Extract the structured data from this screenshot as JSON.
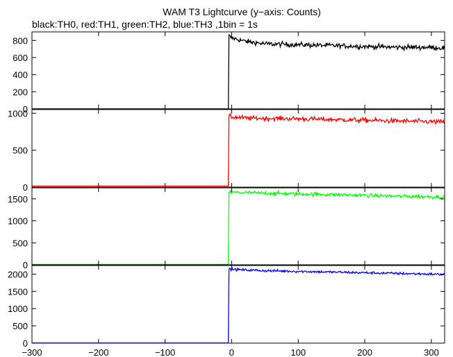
{
  "title": "WAM T3 Lightcurve (y−axis: Counts)",
  "subtitle": "black:TH0, red:TH1, green:TH2, blue:TH3 ,1bin = 1s",
  "chart_data": {
    "type": "line",
    "title": "WAM T3 Lightcurve (y−axis: Counts)",
    "subtitle": "black:TH0, red:TH1, green:TH2, blue:TH3 ,1bin = 1s",
    "xlim": [
      -300,
      320
    ],
    "x_ticks": [
      -300,
      -200,
      -100,
      0,
      100,
      200,
      300
    ],
    "x_tick_labels": [
      "−300",
      "−200",
      "−100",
      "0",
      "100",
      "200",
      "300"
    ],
    "bin_seconds": 1,
    "panels": [
      {
        "name": "TH0",
        "color": "#000000",
        "ylim": [
          0,
          900
        ],
        "y_ticks": [
          0,
          200,
          400,
          600,
          800
        ],
        "baseline": 0,
        "onset_x": -4,
        "profile_x": [
          -4,
          0,
          20,
          50,
          100,
          150,
          200,
          250,
          300,
          320
        ],
        "profile_y": [
          850,
          830,
          790,
          760,
          750,
          740,
          730,
          720,
          720,
          710
        ],
        "noise": 28
      },
      {
        "name": "TH1",
        "color": "#ff0000",
        "ylim": [
          0,
          1050
        ],
        "y_ticks": [
          0,
          500,
          1000
        ],
        "baseline": 15,
        "onset_x": -4,
        "profile_x": [
          -4,
          0,
          20,
          50,
          100,
          150,
          200,
          250,
          300,
          320
        ],
        "profile_y": [
          960,
          950,
          935,
          930,
          925,
          915,
          905,
          895,
          885,
          880
        ],
        "noise": 30
      },
      {
        "name": "TH2",
        "color": "#00ff00",
        "ylim": [
          0,
          1750
        ],
        "y_ticks": [
          0,
          500,
          1000,
          1500
        ],
        "baseline": 10,
        "onset_x": -4,
        "profile_x": [
          -4,
          0,
          20,
          50,
          100,
          150,
          200,
          250,
          300,
          320
        ],
        "profile_y": [
          1660,
          1650,
          1640,
          1630,
          1610,
          1600,
          1580,
          1560,
          1550,
          1540
        ],
        "noise": 40
      },
      {
        "name": "TH3",
        "color": "#0000ff",
        "ylim": [
          0,
          2250
        ],
        "y_ticks": [
          0,
          500,
          1000,
          1500,
          2000
        ],
        "baseline": 5,
        "onset_x": -4,
        "profile_x": [
          -4,
          0,
          20,
          50,
          100,
          150,
          200,
          250,
          300,
          320
        ],
        "profile_y": [
          2160,
          2140,
          2120,
          2100,
          2080,
          2060,
          2040,
          2020,
          2000,
          1990
        ],
        "noise": 35
      }
    ]
  }
}
